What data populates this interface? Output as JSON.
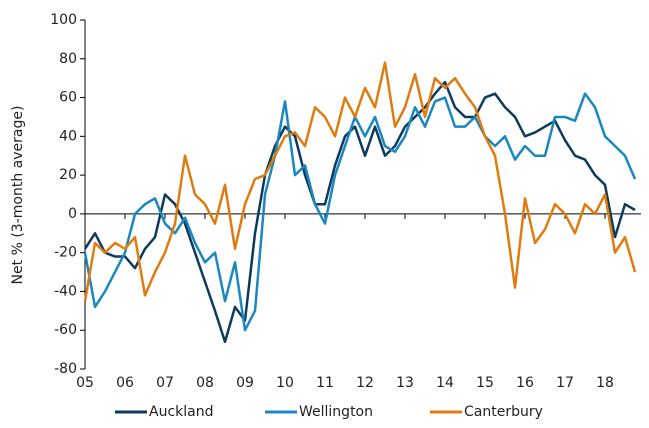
{
  "chart_data": {
    "type": "line",
    "y_label": "Net % (3-month average)",
    "x": [
      5,
      5.25,
      5.5,
      5.75,
      6,
      6.25,
      6.5,
      6.75,
      7,
      7.25,
      7.5,
      7.75,
      8,
      8.25,
      8.5,
      8.75,
      9,
      9.25,
      9.5,
      9.75,
      10,
      10.25,
      10.5,
      10.75,
      11,
      11.25,
      11.5,
      11.75,
      12,
      12.25,
      12.5,
      12.75,
      13,
      13.25,
      13.5,
      13.75,
      14,
      14.25,
      14.5,
      14.75,
      15,
      15.25,
      15.5,
      15.75,
      16,
      16.25,
      16.5,
      16.75,
      17,
      17.25,
      17.5,
      17.75,
      18,
      18.25,
      18.5,
      18.75
    ],
    "series": [
      {
        "name": "Auckland",
        "color": "#0d3b5e",
        "values": [
          -18,
          -10,
          -20,
          -22,
          -22,
          -28,
          -18,
          -12,
          10,
          5,
          -5,
          -20,
          -35,
          -50,
          -66,
          -48,
          -55,
          -10,
          20,
          35,
          45,
          40,
          20,
          5,
          5,
          25,
          40,
          45,
          30,
          45,
          30,
          35,
          45,
          50,
          55,
          62,
          68,
          55,
          50,
          50,
          60,
          62,
          55,
          50,
          40,
          42,
          45,
          48,
          38,
          30,
          28,
          20,
          15,
          -12,
          5,
          2
        ]
      },
      {
        "name": "Wellington",
        "color": "#1a87c0",
        "values": [
          -20,
          -48,
          -40,
          -30,
          -20,
          0,
          5,
          8,
          -5,
          -10,
          -2,
          -15,
          -25,
          -20,
          -45,
          -25,
          -60,
          -50,
          10,
          30,
          58,
          20,
          25,
          5,
          -5,
          20,
          35,
          50,
          40,
          50,
          35,
          32,
          40,
          55,
          45,
          58,
          60,
          45,
          45,
          50,
          40,
          35,
          40,
          28,
          35,
          30,
          30,
          50,
          50,
          48,
          62,
          55,
          40,
          35,
          30,
          18
        ]
      },
      {
        "name": "Canterbury",
        "color": "#e07b10",
        "values": [
          -45,
          -15,
          -20,
          -15,
          -18,
          -12,
          -42,
          -30,
          -20,
          -5,
          30,
          10,
          5,
          -5,
          15,
          -18,
          5,
          18,
          20,
          30,
          40,
          42,
          35,
          55,
          50,
          40,
          60,
          50,
          65,
          55,
          78,
          45,
          55,
          72,
          50,
          70,
          65,
          70,
          62,
          55,
          40,
          30,
          0,
          -38,
          8,
          -15,
          -8,
          5,
          0,
          -10,
          5,
          0,
          10,
          -20,
          -12,
          -30
        ]
      }
    ],
    "xlim": [
      5,
      18.9
    ],
    "xticks": [
      {
        "value": 5,
        "label": "05"
      },
      {
        "value": 6,
        "label": "06"
      },
      {
        "value": 7,
        "label": "07"
      },
      {
        "value": 8,
        "label": "08"
      },
      {
        "value": 9,
        "label": "09"
      },
      10,
      11,
      12,
      13,
      14,
      15,
      16,
      17,
      18
    ],
    "ylim": [
      -80,
      100
    ],
    "yticks": [
      -80,
      -60,
      -40,
      -20,
      0,
      20,
      40,
      60,
      80,
      100
    ]
  }
}
